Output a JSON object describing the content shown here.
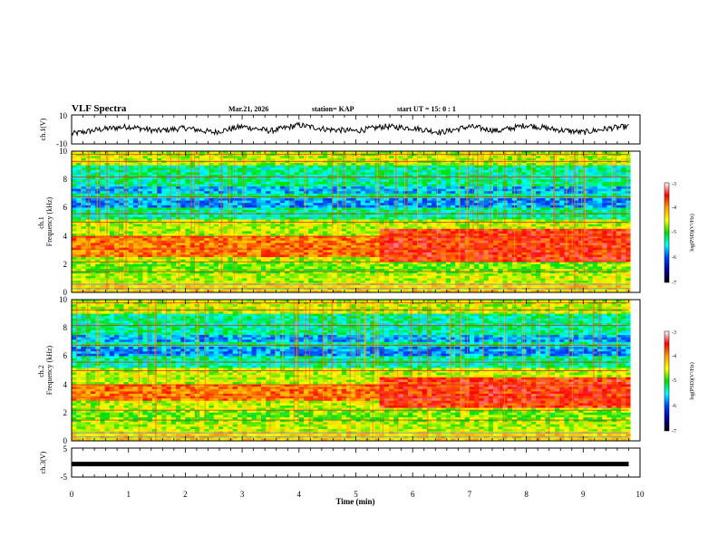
{
  "header": {
    "title": "VLF Spectra",
    "date": "Mar.21, 2026",
    "station": "station= KAP",
    "start_ut": "start UT =  15: 0  : 1"
  },
  "colors": {
    "colormap": [
      "#ffffff",
      "#ff0000",
      "#ffa000",
      "#ffff00",
      "#00e000",
      "#00ffff",
      "#0040ff",
      "#0000a0",
      "#000000"
    ],
    "waveform": "#000000"
  },
  "chart_data": [
    {
      "type": "line",
      "panel": "ch1-waveform",
      "ylabel": "ch.1(V)",
      "ylim": [
        -10,
        10
      ],
      "yticks": [
        "10",
        "-10"
      ],
      "xlim": [
        0,
        10
      ],
      "series": [
        {
          "x": [
            0,
            0.5,
            1.0,
            1.5,
            2.0,
            2.5,
            3.0,
            3.5,
            4.0,
            4.5,
            5.0,
            5.5,
            6.0,
            6.5,
            7.0,
            7.5,
            8.0,
            8.5,
            9.0,
            9.5,
            9.8
          ],
          "y": [
            -3,
            0,
            2,
            -1,
            1,
            -2,
            2,
            -1,
            3,
            0,
            -1,
            2,
            1,
            -2,
            2,
            -1,
            3,
            0,
            -2,
            1,
            2
          ]
        }
      ]
    },
    {
      "type": "heatmap",
      "panel": "ch1-spectrogram",
      "ylabel": "ch.1\nFrequency (kHz)",
      "ylim": [
        0,
        10
      ],
      "yticks": [
        "0",
        "2",
        "4",
        "6",
        "8",
        "10"
      ],
      "xlim": [
        0,
        10
      ],
      "z_range": [
        -7,
        -3
      ],
      "colorbar_label": "log(PSD)(V²/Hz)",
      "colorbar_ticks": [
        "-3",
        "-4",
        "-5",
        "-6",
        "-7"
      ],
      "intense_band_kHz": [
        2.5,
        4.0
      ],
      "band_broadens_after_min": 5.4
    },
    {
      "type": "heatmap",
      "panel": "ch2-spectrogram",
      "ylabel": "ch.2\nFrequency (kHz)",
      "ylim": [
        0,
        10
      ],
      "yticks": [
        "0",
        "2",
        "4",
        "6",
        "8",
        "10"
      ],
      "xlim": [
        0,
        10
      ],
      "z_range": [
        -7,
        -3
      ],
      "colorbar_label": "log(PSD)(V²/Hz)",
      "colorbar_ticks": [
        "-3",
        "-4",
        "-5",
        "-6",
        "-7"
      ],
      "intense_band_kHz": [
        2.8,
        4.0
      ],
      "band_broadens_after_min": 5.4
    },
    {
      "type": "line",
      "panel": "ch3-waveform",
      "ylabel": "ch.3(V)",
      "ylim": [
        -5,
        5
      ],
      "yticks": [
        "5",
        "-5"
      ],
      "xlim": [
        0,
        10
      ],
      "series": [
        {
          "x": [
            0,
            9.8
          ],
          "y": [
            -0.5,
            -0.5
          ]
        }
      ]
    }
  ],
  "xaxis": {
    "label": "Time (min)",
    "ticks": [
      "0",
      "1",
      "2",
      "3",
      "4",
      "5",
      "6",
      "7",
      "8",
      "9",
      "10"
    ]
  }
}
